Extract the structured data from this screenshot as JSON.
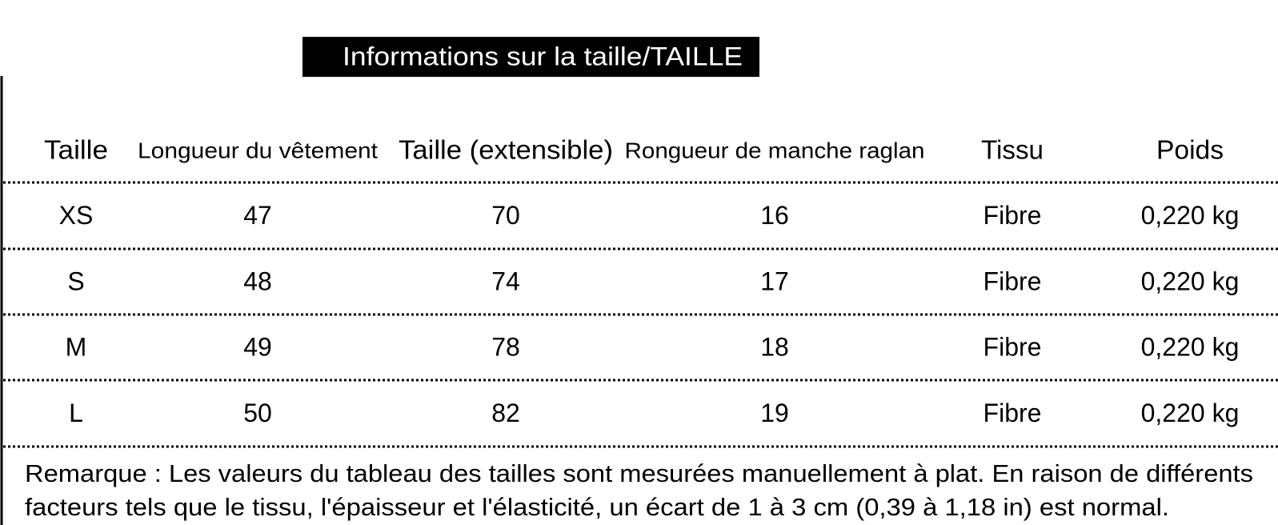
{
  "header": {
    "title": "Informations sur la taille/TAILLE"
  },
  "table": {
    "columns": [
      "Taille",
      "Longueur du vêtement",
      "Taille (extensible)",
      "Rongueur de manche raglan",
      "Tissu",
      "Poids"
    ],
    "rows": [
      [
        "XS",
        "47",
        "70",
        "16",
        "Fibre",
        "0,220 kg"
      ],
      [
        "S",
        "48",
        "74",
        "17",
        "Fibre",
        "0,220 kg"
      ],
      [
        "M",
        "49",
        "78",
        "18",
        "Fibre",
        "0,220 kg"
      ],
      [
        "L",
        "50",
        "82",
        "19",
        "Fibre",
        "0,220 kg"
      ]
    ]
  },
  "note": {
    "lines": [
      "Remarque : Les valeurs du tableau des tailles sont mesurées manuellement à plat. En raison de différents",
      "facteurs tels que le tissu, l'épaisseur et l'élasticité, un écart de 1 à 3 cm (0,39 à 1,18 in) est normal."
    ]
  }
}
